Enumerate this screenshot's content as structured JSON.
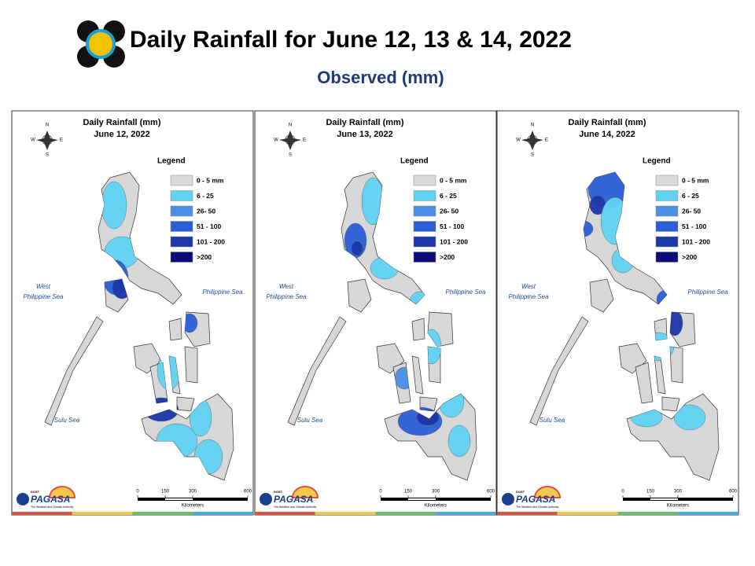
{
  "header": {
    "title": "Daily Rainfall for June 12, 13 & 14, 2022",
    "subtitle": "Observed (mm)"
  },
  "panels": [
    {
      "title": "Daily Rainfall (mm)",
      "date": "June 12, 2022"
    },
    {
      "title": "Daily Rainfall (mm)",
      "date": "June 13, 2022"
    },
    {
      "title": "Daily Rainfall (mm)",
      "date": "June 14, 2022"
    }
  ],
  "legend": {
    "title": "Legend",
    "items": [
      {
        "label": "0 - 5 mm",
        "color": "#d9d9d9"
      },
      {
        "label": "6 - 25",
        "color": "#5fd3f3"
      },
      {
        "label": "26- 50",
        "color": "#4a90e2"
      },
      {
        "label": "51 - 100",
        "color": "#2b5fd6"
      },
      {
        "label": "101 - 200",
        "color": "#1d36a8"
      },
      {
        "label": ">200",
        "color": "#0b0b7a"
      }
    ]
  },
  "compass": {
    "n": "N",
    "e": "E",
    "s": "S",
    "w": "W"
  },
  "sea_labels": {
    "west_1": "West",
    "west_2": "Philippine Sea",
    "east": "Philippine Sea",
    "sulu": "Sulu Sea"
  },
  "scale_bar": {
    "ticks": [
      0,
      150,
      300,
      600
    ],
    "unit": "Kilometers"
  },
  "logo": {
    "agency_small": "DOST",
    "agency": "PAGASA",
    "tagline": "The Weather and Climate Authority"
  }
}
